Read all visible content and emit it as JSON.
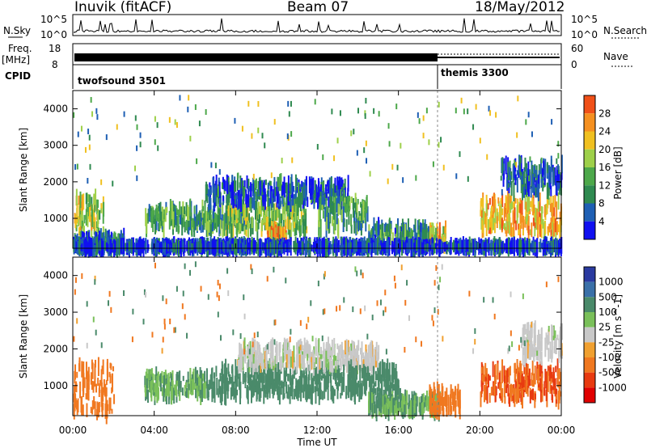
{
  "header": {
    "station": "Inuvik (fitACF)",
    "beam": "Beam 07",
    "date": "18/May/2012"
  },
  "strip_labels": {
    "nsky": "N.Sky",
    "freq": "Freq.",
    "freq_unit": "[MHz]",
    "cpid": "CPID",
    "nsearch": "N.Search",
    "nave": "Nave",
    "nsky_ticks": [
      "10^5",
      "10^0"
    ],
    "freq_ticks": [
      "18",
      "8"
    ],
    "nsearch_ticks": [
      "10^5",
      "10^0"
    ],
    "nave_ticks": [
      "60",
      "0"
    ],
    "cpid_segments": [
      "twofsound 3501",
      "themis 3300"
    ]
  },
  "x_axis": {
    "title": "Time UT",
    "ticks": [
      "00:00",
      "04:00",
      "08:00",
      "12:00",
      "16:00",
      "20:00",
      "00:00"
    ]
  },
  "colors": {
    "power": [
      "#1010f0",
      "#1e5fb4",
      "#2f8a50",
      "#4da84a",
      "#9ed04a",
      "#f0c020",
      "#f59020",
      "#f05018",
      "#e81010"
    ],
    "velocity": [
      "#2a3aa0",
      "#3a70a8",
      "#4a8a6a",
      "#7ac05a",
      "#c8c8c8",
      "#f0a030",
      "#f07820",
      "#e83a10",
      "#e00000"
    ]
  },
  "chart_data": [
    {
      "type": "heatmap",
      "title": "Power",
      "xlabel": "Time UT",
      "ylabel": "Slant Range [km]",
      "xlim": [
        0,
        24
      ],
      "ylim": [
        180,
        4500
      ],
      "y_ticks": [
        "1000",
        "2000",
        "3000",
        "4000"
      ],
      "colorbar": {
        "label": "Power [dB]",
        "ticks": [
          "4",
          "8",
          "12",
          "16",
          "20",
          "24",
          "28"
        ],
        "range": [
          0,
          32
        ]
      },
      "features": [
        {
          "t": [
            0.0,
            1.5
          ],
          "range": [
            600,
            1600
          ],
          "value": 18
        },
        {
          "t": [
            0.0,
            2.5
          ],
          "range": [
            180,
            500
          ],
          "value": 8
        },
        {
          "t": [
            3.5,
            8.5
          ],
          "range": [
            700,
            1300
          ],
          "value": 12
        },
        {
          "t": [
            7.5,
            11.5
          ],
          "range": [
            600,
            1400
          ],
          "value": 16
        },
        {
          "t": [
            6.5,
            13.5
          ],
          "range": [
            1400,
            2000
          ],
          "value": 6
        },
        {
          "t": [
            9.5,
            10.5
          ],
          "range": [
            180,
            700
          ],
          "value": 26
        },
        {
          "t": [
            12.0,
            14.5
          ],
          "range": [
            700,
            1600
          ],
          "value": 12
        },
        {
          "t": [
            14.5,
            17.5
          ],
          "range": [
            300,
            800
          ],
          "value": 10
        },
        {
          "t": [
            17.5,
            18.3
          ],
          "range": [
            250,
            700
          ],
          "value": 22
        },
        {
          "t": [
            20.0,
            24.0
          ],
          "range": [
            600,
            1500
          ],
          "value": 24
        },
        {
          "t": [
            21.0,
            24.0
          ],
          "range": [
            1700,
            2500
          ],
          "value": 6
        },
        {
          "t": [
            0.0,
            24.0
          ],
          "range": [
            180,
            260
          ],
          "value": 4
        }
      ]
    },
    {
      "type": "heatmap",
      "title": "Velocity",
      "xlabel": "Time UT",
      "ylabel": "Slant Range [km]",
      "xlim": [
        0,
        24
      ],
      "ylim": [
        180,
        4500
      ],
      "y_ticks": [
        "1000",
        "2000",
        "3000",
        "4000"
      ],
      "colorbar": {
        "label": "Velocity [m s^-1]",
        "ticks": [
          "1000",
          "500",
          "100",
          "25",
          "-25",
          "-100",
          "-500",
          "-1000"
        ]
      },
      "features": [
        {
          "t": [
            0.0,
            2.0
          ],
          "range": [
            180,
            1600
          ],
          "value": -200
        },
        {
          "t": [
            3.5,
            6.5
          ],
          "range": [
            700,
            1300
          ],
          "value": 60
        },
        {
          "t": [
            6.5,
            13.0
          ],
          "range": [
            700,
            1500
          ],
          "value": 200
        },
        {
          "t": [
            8.0,
            15.0
          ],
          "range": [
            1500,
            2100
          ],
          "value": 0
        },
        {
          "t": [
            13.0,
            16.0
          ],
          "range": [
            700,
            1500
          ],
          "value": 200
        },
        {
          "t": [
            14.5,
            18.0
          ],
          "range": [
            250,
            700
          ],
          "value": 60
        },
        {
          "t": [
            17.5,
            19.0
          ],
          "range": [
            250,
            900
          ],
          "value": -200
        },
        {
          "t": [
            20.0,
            24.0
          ],
          "range": [
            600,
            1500
          ],
          "value": -300
        },
        {
          "t": [
            22.0,
            24.0
          ],
          "range": [
            1700,
            2600
          ],
          "value": 0
        }
      ]
    }
  ]
}
